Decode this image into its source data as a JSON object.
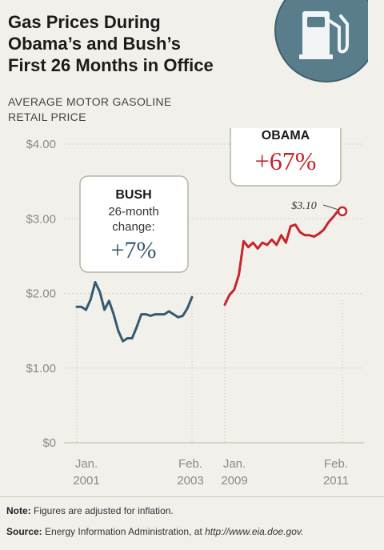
{
  "title_lines": [
    "Gas Prices During",
    "Obama’s and Bush’s",
    "First 26 Months in Office"
  ],
  "subtitle_lines": [
    "AVERAGE MOTOR GASOLINE",
    "RETAIL PRICE"
  ],
  "icon": "gas-pump-icon",
  "colors": {
    "bush": "#355a6e",
    "obama": "#c8252c",
    "badge": "#5a7d8c"
  },
  "chart_data": {
    "type": "line",
    "title": "Gas Prices During Obama’s and Bush’s First 26 Months in Office",
    "ylabel": "AVERAGE MOTOR GASOLINE RETAIL PRICE",
    "ylim": [
      0,
      4
    ],
    "yticks": [
      "$4.00",
      "$3.00",
      "$2.00",
      "$1.00",
      "$0"
    ],
    "ytick_values": [
      4,
      3,
      2,
      1,
      0
    ],
    "grid": true,
    "xticks": [
      {
        "label": "Jan.",
        "sub": "2001"
      },
      {
        "label": "Feb.",
        "sub": "2003"
      },
      {
        "label": "Jan.",
        "sub": "2009"
      },
      {
        "label": "Feb.",
        "sub": "2011"
      }
    ],
    "series": [
      {
        "name": "BUSH",
        "x": [
          "2001-01",
          "2001-02",
          "2001-03",
          "2001-04",
          "2001-05",
          "2001-06",
          "2001-07",
          "2001-08",
          "2001-09",
          "2001-10",
          "2001-11",
          "2001-12",
          "2002-01",
          "2002-02",
          "2002-03",
          "2002-04",
          "2002-05",
          "2002-06",
          "2002-07",
          "2002-08",
          "2002-09",
          "2002-10",
          "2002-11",
          "2002-12",
          "2003-01",
          "2003-02"
        ],
        "values": [
          1.82,
          1.82,
          1.78,
          1.92,
          2.15,
          2.02,
          1.78,
          1.9,
          1.72,
          1.5,
          1.36,
          1.4,
          1.4,
          1.55,
          1.72,
          1.72,
          1.7,
          1.72,
          1.72,
          1.72,
          1.76,
          1.72,
          1.68,
          1.7,
          1.8,
          1.95
        ]
      },
      {
        "name": "OBAMA",
        "x": [
          "2009-01",
          "2009-02",
          "2009-03",
          "2009-04",
          "2009-05",
          "2009-06",
          "2009-07",
          "2009-08",
          "2009-09",
          "2009-10",
          "2009-11",
          "2009-12",
          "2010-01",
          "2010-02",
          "2010-03",
          "2010-04",
          "2010-05",
          "2010-06",
          "2010-07",
          "2010-08",
          "2010-09",
          "2010-10",
          "2010-11",
          "2010-12",
          "2011-01",
          "2011-02"
        ],
        "values": [
          1.85,
          1.98,
          2.05,
          2.25,
          2.7,
          2.62,
          2.68,
          2.6,
          2.68,
          2.65,
          2.72,
          2.65,
          2.78,
          2.68,
          2.9,
          2.92,
          2.82,
          2.78,
          2.78,
          2.76,
          2.8,
          2.85,
          2.95,
          3.02,
          3.1,
          3.1
        ]
      }
    ],
    "annotations": [
      {
        "series": "BUSH",
        "header": "BUSH",
        "text": "26-month",
        "text2": "change:",
        "value": "+7%"
      },
      {
        "series": "OBAMA",
        "header": "OBAMA",
        "value": "+67%"
      },
      {
        "series": "OBAMA",
        "point_label": "$3.10"
      }
    ]
  },
  "footer": {
    "note_label": "Note:",
    "note_text": " Figures are adjusted for inflation.",
    "source_label": "Source:",
    "source_text": " Energy Information Administration, at ",
    "source_url": "http://www.eia.doe.gov."
  }
}
